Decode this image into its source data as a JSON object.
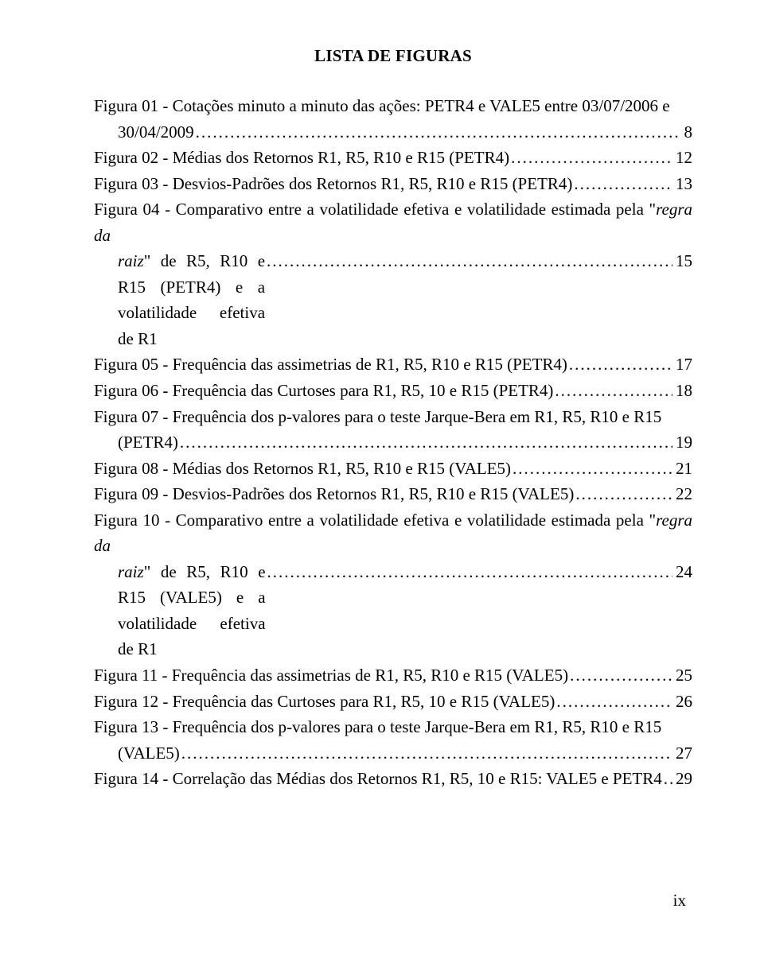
{
  "page": {
    "title": "LISTA DE FIGURAS",
    "footer_page_number": "ix",
    "colors": {
      "background": "#ffffff",
      "text": "#000000"
    },
    "typography": {
      "font_family": "Times New Roman",
      "body_fontsize_pt": 16,
      "title_fontsize_pt": 16,
      "title_weight": "bold"
    }
  },
  "entries": [
    {
      "lines": [
        "Figura 01 - Cotações minuto a minuto das ações: PETR4 e VALE5 entre 03/07/2006 e"
      ],
      "indent_tail": "30/04/2009",
      "page": "8"
    },
    {
      "tail": "Figura 02 - Médias dos Retornos R1, R5, R10 e R15 (PETR4)",
      "page": "12"
    },
    {
      "tail": "Figura 03 - Desvios-Padrões dos Retornos R1, R5, R10 e R15 (PETR4)",
      "page": "13"
    },
    {
      "lines_mixed": [
        {
          "plain": "Figura 04 - Comparativo entre a volatilidade efetiva e volatilidade estimada pela \""
        },
        {
          "italic": "regra da"
        }
      ],
      "indent_mixed_tail": [
        {
          "italic": "raiz"
        },
        {
          "plain": "\" de R5, R10 e R15 (PETR4) e a volatilidade efetiva de R1"
        }
      ],
      "page": "15"
    },
    {
      "tail": "Figura 05 - Frequência das assimetrias de R1, R5, R10 e R15 (PETR4)",
      "page": "17"
    },
    {
      "tail": "Figura 06 - Frequência das Curtoses para R1, R5, 10 e R15 (PETR4)",
      "page": "18"
    },
    {
      "lines": [
        "Figura 07 - Frequência dos p-valores para o teste Jarque-Bera em R1, R5, R10 e R15"
      ],
      "indent_tail": "(PETR4)",
      "page": "19"
    },
    {
      "tail": "Figura 08 - Médias dos Retornos R1, R5, R10 e R15 (VALE5)",
      "page": "21"
    },
    {
      "tail": "Figura 09 - Desvios-Padrões dos Retornos R1, R5, R10 e R15 (VALE5)",
      "page": "22"
    },
    {
      "lines_mixed": [
        {
          "plain": "Figura 10 - Comparativo entre a volatilidade efetiva e volatilidade estimada pela \""
        },
        {
          "italic": "regra da"
        }
      ],
      "indent_mixed_tail": [
        {
          "italic": "raiz"
        },
        {
          "plain": "\" de R5, R10 e R15 (VALE5) e a volatilidade efetiva de R1"
        }
      ],
      "page": "24"
    },
    {
      "tail": "Figura 11 - Frequência das assimetrias de R1, R5, R10 e R15 (VALE5)",
      "page": "25"
    },
    {
      "tail": "Figura 12 - Frequência das Curtoses para R1, R5, 10 e R15 (VALE5)",
      "page": "26"
    },
    {
      "lines": [
        "Figura 13 - Frequência dos p-valores para o teste Jarque-Bera em R1, R5, R10 e R15"
      ],
      "indent_tail": "(VALE5)",
      "page": "27"
    },
    {
      "tail": "Figura 14 - Correlação das Médias dos Retornos R1, R5, 10 e R15: VALE5 e PETR4",
      "page": "29"
    }
  ]
}
